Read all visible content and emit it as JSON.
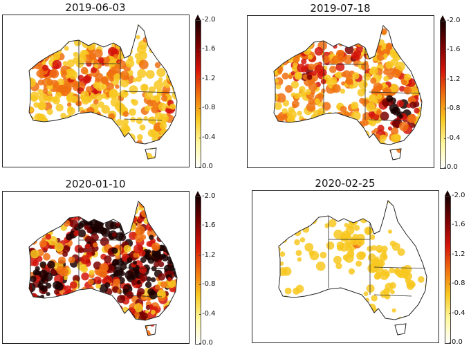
{
  "panels": [
    {
      "title": "2019-06-03",
      "intensity": 0.35,
      "hotspot": "west-east-mixed"
    },
    {
      "title": "2019-07-18",
      "intensity": 0.45,
      "hotspot": "south-east-queensland"
    },
    {
      "title": "2020-01-10",
      "intensity": 0.85,
      "hotspot": "widespread-east-north"
    },
    {
      "title": "2020-02-25",
      "intensity": 0.2,
      "hotspot": "sparse"
    }
  ],
  "colorbar": {
    "ticks": [
      "-2.0",
      "-1.6",
      "-1.2",
      "-0.8",
      "-0.4",
      "0.0"
    ],
    "colors": [
      "#1a0000",
      "#7a0000",
      "#d4140a",
      "#f07010",
      "#f8c820",
      "#fff8a0",
      "#ffffff"
    ]
  }
}
